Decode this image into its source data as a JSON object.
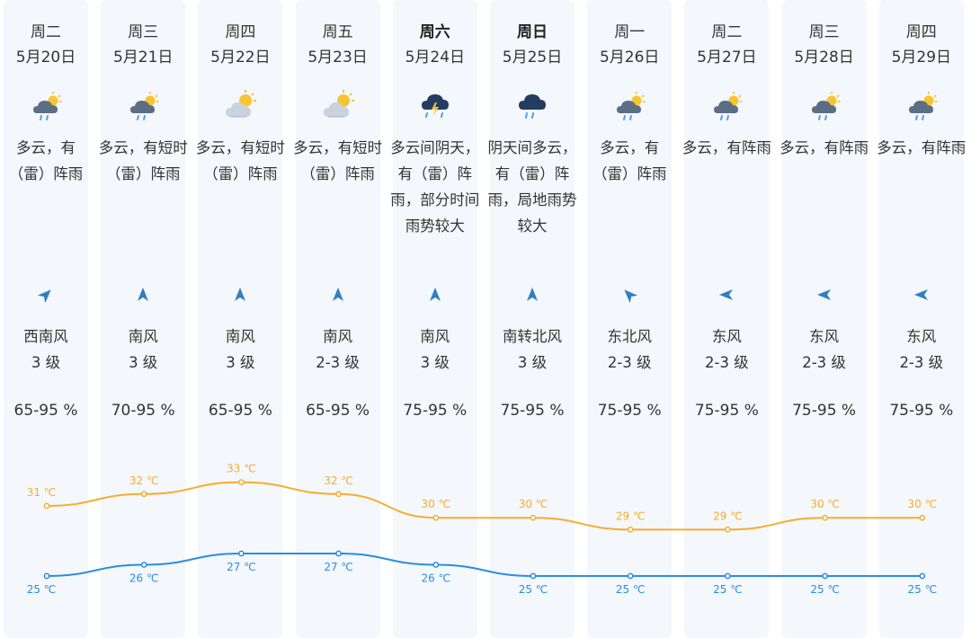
{
  "forecast": {
    "days": [
      {
        "day": "周二",
        "date": "5月20日",
        "bold": false,
        "icon": "cloud-sun-rain-icon",
        "desc": "多云，有（雷）阵雨",
        "wind_dir": "西南风",
        "wind_level": "3 级",
        "wind_arrow_deg": 45,
        "humidity": "65-95 %"
      },
      {
        "day": "周三",
        "date": "5月21日",
        "bold": false,
        "icon": "cloud-sun-rain-icon",
        "desc": "多云，有短时（雷）阵雨",
        "wind_dir": "南风",
        "wind_level": "3 级",
        "wind_arrow_deg": 0,
        "humidity": "70-95 %"
      },
      {
        "day": "周四",
        "date": "5月22日",
        "bold": false,
        "icon": "sun-cloud-icon",
        "desc": "多云，有短时（雷）阵雨",
        "wind_dir": "南风",
        "wind_level": "3 级",
        "wind_arrow_deg": 0,
        "humidity": "65-95 %"
      },
      {
        "day": "周五",
        "date": "5月23日",
        "bold": false,
        "icon": "sun-cloud-icon",
        "desc": "多云，有短时（雷）阵雨",
        "wind_dir": "南风",
        "wind_level": "2-3 级",
        "wind_arrow_deg": 0,
        "humidity": "65-95 %"
      },
      {
        "day": "周六",
        "date": "5月24日",
        "bold": true,
        "icon": "thunderstorm-icon",
        "desc": "多云间阴天，有（雷）阵雨，部分时间雨势较大",
        "wind_dir": "南风",
        "wind_level": "3 级",
        "wind_arrow_deg": 0,
        "humidity": "75-95 %"
      },
      {
        "day": "周日",
        "date": "5月25日",
        "bold": true,
        "icon": "rain-cloud-icon",
        "desc": "阴天间多云，有（雷）阵雨，局地雨势较大",
        "wind_dir": "南转北风",
        "wind_level": "3 级",
        "wind_arrow_deg": 0,
        "humidity": "75-95 %"
      },
      {
        "day": "周一",
        "date": "5月26日",
        "bold": false,
        "icon": "cloud-sun-rain-icon",
        "desc": "多云，有（雷）阵雨",
        "wind_dir": "东北风",
        "wind_level": "2-3 级",
        "wind_arrow_deg": -45,
        "humidity": "75-95 %"
      },
      {
        "day": "周二",
        "date": "5月27日",
        "bold": false,
        "icon": "cloud-sun-rain-icon",
        "desc": "多云，有阵雨",
        "wind_dir": "东风",
        "wind_level": "2-3 级",
        "wind_arrow_deg": -90,
        "humidity": "75-95 %"
      },
      {
        "day": "周三",
        "date": "5月28日",
        "bold": false,
        "icon": "cloud-sun-rain-icon",
        "desc": "多云，有阵雨",
        "wind_dir": "东风",
        "wind_level": "2-3 级",
        "wind_arrow_deg": -90,
        "humidity": "75-95 %"
      },
      {
        "day": "周四",
        "date": "5月29日",
        "bold": false,
        "icon": "cloud-sun-rain-icon",
        "desc": "多云，有阵雨",
        "wind_dir": "东风",
        "wind_level": "2-3 级",
        "wind_arrow_deg": -90,
        "humidity": "75-95 %"
      }
    ]
  },
  "chart_data": {
    "type": "line",
    "categories": [
      "5月20日",
      "5月21日",
      "5月22日",
      "5月23日",
      "5月24日",
      "5月25日",
      "5月26日",
      "5月27日",
      "5月28日",
      "5月29日"
    ],
    "series": [
      {
        "key": "high",
        "values": [
          31,
          32,
          33,
          32,
          30,
          30,
          29,
          29,
          30,
          30
        ],
        "color": "#f5ad30"
      },
      {
        "key": "low",
        "values": [
          25,
          26,
          27,
          27,
          26,
          25,
          25,
          25,
          25,
          25
        ],
        "color": "#2b8de0"
      }
    ],
    "unit": "℃",
    "grid": false
  },
  "colors": {
    "column_bg": "#f4f7fb",
    "high": "#f5ad30",
    "low": "#2b8de0",
    "icon_cloud": "#5c6e85",
    "icon_sun": "#f6c531",
    "icon_dark": "#233d60"
  }
}
